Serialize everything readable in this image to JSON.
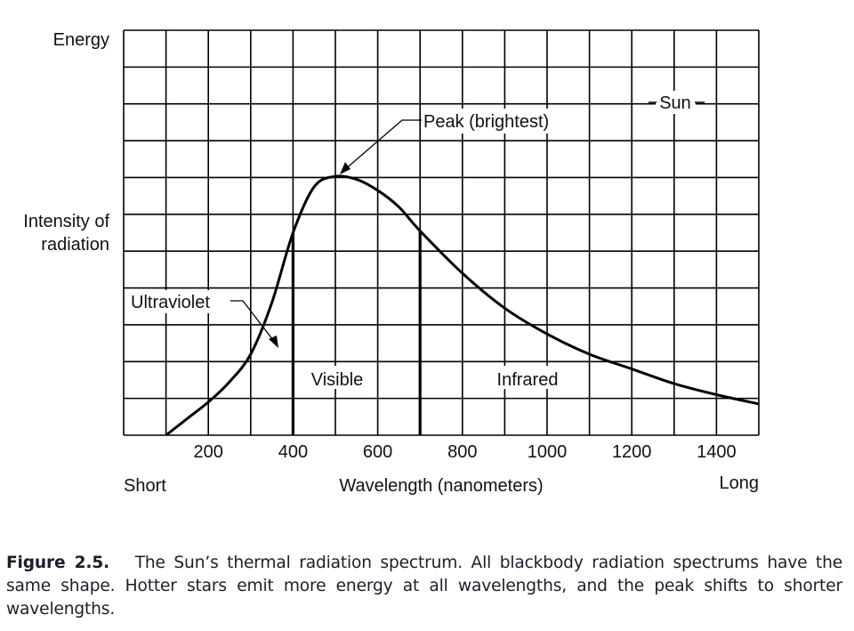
{
  "chart_data": {
    "type": "line",
    "title": "",
    "xlabel": "Wavelength (nanometers)",
    "ylabel_top": "Energy",
    "ylabel": "Intensity of radiation",
    "xlabel_left": "Short",
    "xlabel_right": "Long",
    "xlim": [
      0,
      1500
    ],
    "ylim": [
      0,
      11
    ],
    "x_grid_step": 100,
    "y_grid_step": 1,
    "grid": true,
    "xticks": [
      200,
      400,
      600,
      800,
      1000,
      1200,
      1400
    ],
    "xtick_labels": [
      "200",
      "400",
      "600",
      "800",
      "1000",
      "1200",
      "1400"
    ],
    "series": [
      {
        "name": "Sun",
        "x": [
          100,
          150,
          200,
          250,
          300,
          350,
          400,
          450,
          500,
          550,
          600,
          650,
          700,
          800,
          900,
          1000,
          1100,
          1200,
          1300,
          1400,
          1500
        ],
        "values": [
          0.0,
          0.45,
          0.9,
          1.45,
          2.2,
          3.6,
          5.5,
          6.75,
          7.03,
          6.95,
          6.65,
          6.2,
          5.55,
          4.4,
          3.45,
          2.75,
          2.2,
          1.8,
          1.4,
          1.1,
          0.85
        ]
      }
    ],
    "bands": [
      {
        "name": "Visible",
        "from": 400,
        "to": 700
      },
      {
        "name": "Infrared",
        "from": 700,
        "to": 1500
      }
    ],
    "annotations": [
      {
        "text": "Peak (brightest)",
        "target_x": 500,
        "target_y": 7.0
      },
      {
        "text": "Ultraviolet",
        "target_x": 370,
        "target_y": 2.4
      },
      {
        "text": "Sun",
        "target": "curve label"
      }
    ],
    "region_labels": [
      "Visible",
      "Infrared"
    ],
    "colors": {
      "line": "#000000",
      "grid": "#000000",
      "background": "#ffffff"
    }
  },
  "caption": {
    "figure_label": "Figure 2.5.",
    "text": "The Sun’s thermal radiation spectrum. All blackbody radiation spectrums have the same shape. Hotter stars emit more energy at all wavelengths, and the peak shifts to shorter wavelengths."
  }
}
